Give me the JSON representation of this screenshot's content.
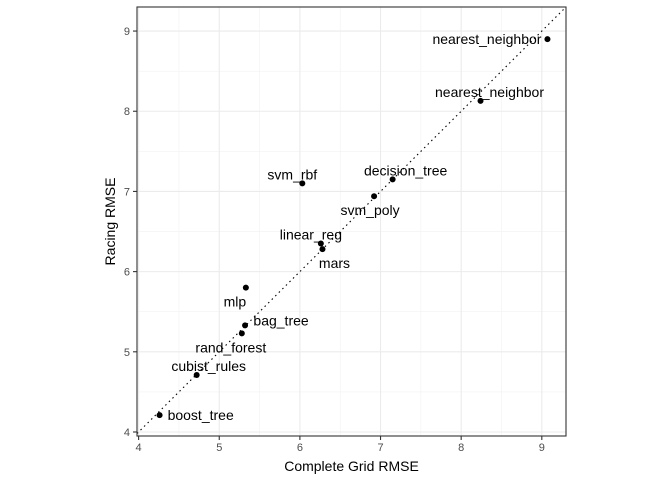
{
  "chart_data": {
    "type": "scatter",
    "xlabel": "Complete Grid RMSE",
    "ylabel": "Racing RMSE",
    "xlim": [
      3.98,
      9.3
    ],
    "ylim": [
      3.95,
      9.3
    ],
    "x_ticks": [
      4,
      5,
      6,
      7,
      8,
      9
    ],
    "y_ticks": [
      4,
      5,
      6,
      7,
      8,
      9
    ],
    "grid": true,
    "reference_line": "y = x (dotted)",
    "points": [
      {
        "label": "boost_tree",
        "x": 4.26,
        "y": 4.21
      },
      {
        "label": "cubist_rules",
        "x": 4.72,
        "y": 4.71
      },
      {
        "label": "rand_forest",
        "x": 5.28,
        "y": 5.23
      },
      {
        "label": "bag_tree",
        "x": 5.32,
        "y": 5.33
      },
      {
        "label": "mlp",
        "x": 5.33,
        "y": 5.8
      },
      {
        "label": "mars",
        "x": 6.28,
        "y": 6.28
      },
      {
        "label": "linear_reg",
        "x": 6.26,
        "y": 6.35
      },
      {
        "label": "svm_rbf",
        "x": 6.03,
        "y": 7.1
      },
      {
        "label": "svm_poly",
        "x": 6.92,
        "y": 6.94
      },
      {
        "label": "decision_tree",
        "x": 7.15,
        "y": 7.15
      },
      {
        "label": "nearest_neighbor",
        "x": 8.24,
        "y": 8.13
      },
      {
        "label": "nearest_neighbor",
        "x": 9.07,
        "y": 8.9
      }
    ]
  }
}
